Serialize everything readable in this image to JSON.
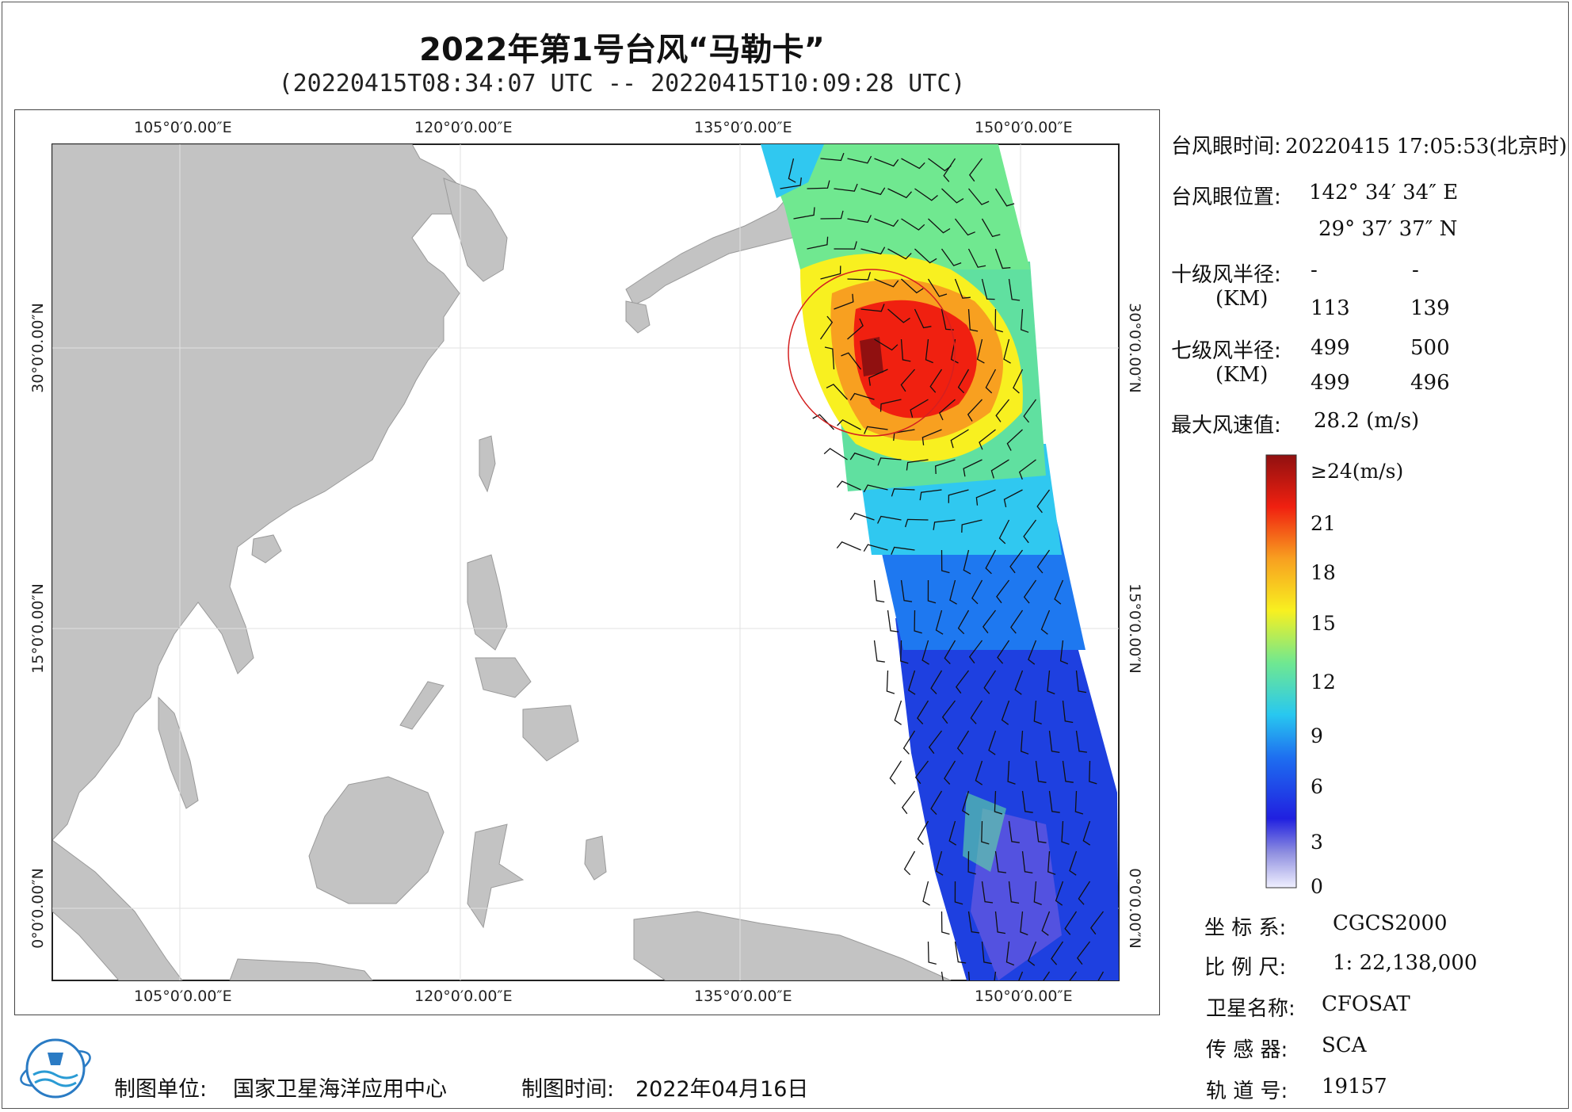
{
  "title": "2022年第1号台风“马勒卡”",
  "subtitle": "(20220415T08:34:07 UTC -- 20220415T10:09:28 UTC)",
  "map": {
    "lon_labels": [
      "105°0′0.00″E",
      "120°0′0.00″E",
      "135°0′0.00″E",
      "150°0′0.00″E"
    ],
    "lat_labels": [
      "30°0′0.00″N",
      "15°0′0.00″N",
      "0°0′0.00″N"
    ],
    "land_color": "#c3c3c3",
    "circle_color": "#d42020",
    "eye": {
      "lon": 142.576,
      "lat": 29.627
    }
  },
  "info": {
    "eye_time_label": "台风眼时间:",
    "eye_time_value": "20220415 17:05:53(北京时)",
    "eye_pos_label": "台风眼位置:",
    "eye_lon": "142° 34′ 34″ E",
    "eye_lat": "29° 37′ 37″ N",
    "r10_label": "十级风半径:",
    "r10_unit": "(KM)",
    "r10_values": [
      "-",
      "-",
      "113",
      "139"
    ],
    "r7_label": "七级风半径:",
    "r7_unit": "(KM)",
    "r7_values": [
      "499",
      "500",
      "499",
      "496"
    ],
    "max_label": "最大风速值:",
    "max_value": "28.2  (m/s)"
  },
  "legend": {
    "labels": [
      "≥24(m/s)",
      "21",
      "18",
      "15",
      "12",
      "9",
      "6",
      "3",
      "0"
    ],
    "colors": [
      "#f0f0ff",
      "#9090e0",
      "#2020e0",
      "#1e6ef0",
      "#28c8f0",
      "#70e890",
      "#f8f020",
      "#f8a020",
      "#f02010",
      "#901010"
    ]
  },
  "meta": {
    "coord_label": "坐 标 系:",
    "coord_value": "CGCS2000",
    "scale_label": "比 例 尺:",
    "scale_value": "1: 22,138,000",
    "sat_label": "卫星名称:",
    "sat_value": "CFOSAT",
    "sensor_label": "传 感 器:",
    "sensor_value": "SCA",
    "orbit_label": "轨 道 号:",
    "orbit_value": "19157"
  },
  "footer": {
    "unit_label": "制图单位:",
    "unit_value": "国家卫星海洋应用中心",
    "time_label": "制图时间:",
    "time_value": "2022年04月16日"
  }
}
